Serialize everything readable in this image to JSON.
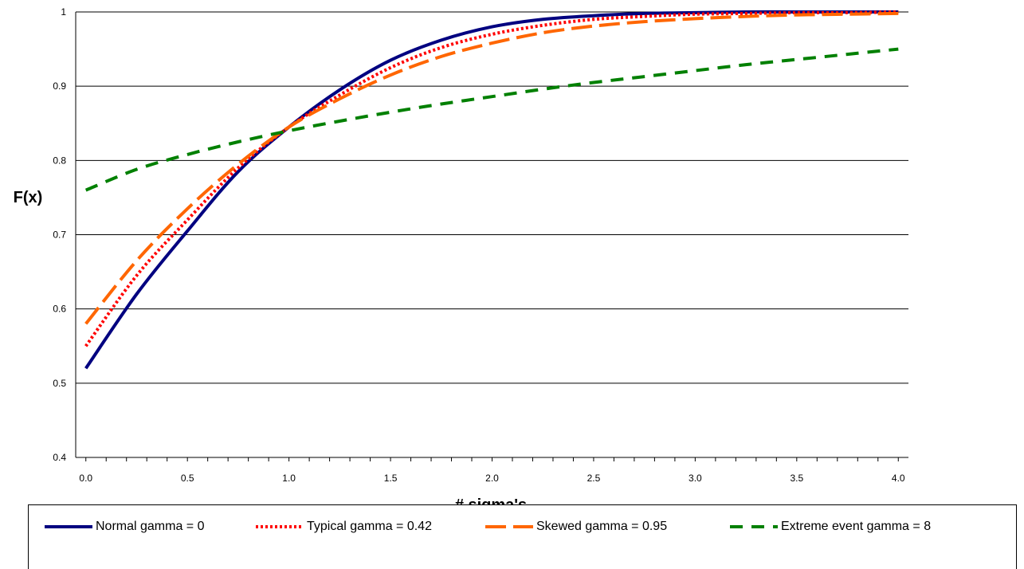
{
  "chart_data": {
    "type": "line",
    "title": "",
    "xlabel": "# sigma's",
    "ylabel": "F(x)",
    "xlim": [
      -0.05,
      4.05
    ],
    "ylim": [
      0.4,
      1.0
    ],
    "x_ticks": [
      "0.0",
      "0.5",
      "1.0",
      "1.5",
      "2.0",
      "2.5",
      "3.0",
      "3.5",
      "4.0"
    ],
    "y_ticks": [
      "0.4",
      "0.5",
      "0.6",
      "0.7",
      "0.8",
      "0.9",
      "1"
    ],
    "grid": "horizontal",
    "legend_position": "bottom",
    "x": [
      0.0,
      0.25,
      0.5,
      0.75,
      1.0,
      1.25,
      1.5,
      1.75,
      2.0,
      2.25,
      2.5,
      2.75,
      3.0,
      3.25,
      3.5,
      3.75,
      4.0
    ],
    "series": [
      {
        "name": "Normal gamma = 0",
        "color": "#000080",
        "style": "solid",
        "values": [
          0.52,
          0.62,
          0.705,
          0.785,
          0.845,
          0.895,
          0.935,
          0.962,
          0.98,
          0.99,
          0.995,
          0.998,
          0.999,
          1.0,
          1.0,
          1.0,
          1.0
        ]
      },
      {
        "name": "Typical gamma = 0.42",
        "color": "#ff0000",
        "style": "dotted",
        "values": [
          0.55,
          0.645,
          0.72,
          0.79,
          0.845,
          0.888,
          0.925,
          0.952,
          0.97,
          0.982,
          0.99,
          0.994,
          0.997,
          0.998,
          0.999,
          0.999,
          1.0
        ]
      },
      {
        "name": "Skewed gamma =  0.95",
        "color": "#ff6600",
        "style": "longdash",
        "values": [
          0.58,
          0.665,
          0.735,
          0.795,
          0.845,
          0.883,
          0.915,
          0.94,
          0.958,
          0.972,
          0.981,
          0.987,
          0.991,
          0.994,
          0.996,
          0.997,
          0.998
        ]
      },
      {
        "name": "Extreme event gamma = 8",
        "color": "#008000",
        "style": "dashed",
        "values": [
          0.76,
          0.788,
          0.808,
          0.825,
          0.84,
          0.853,
          0.865,
          0.876,
          0.886,
          0.896,
          0.905,
          0.913,
          0.921,
          0.929,
          0.936,
          0.943,
          0.95
        ]
      }
    ]
  }
}
